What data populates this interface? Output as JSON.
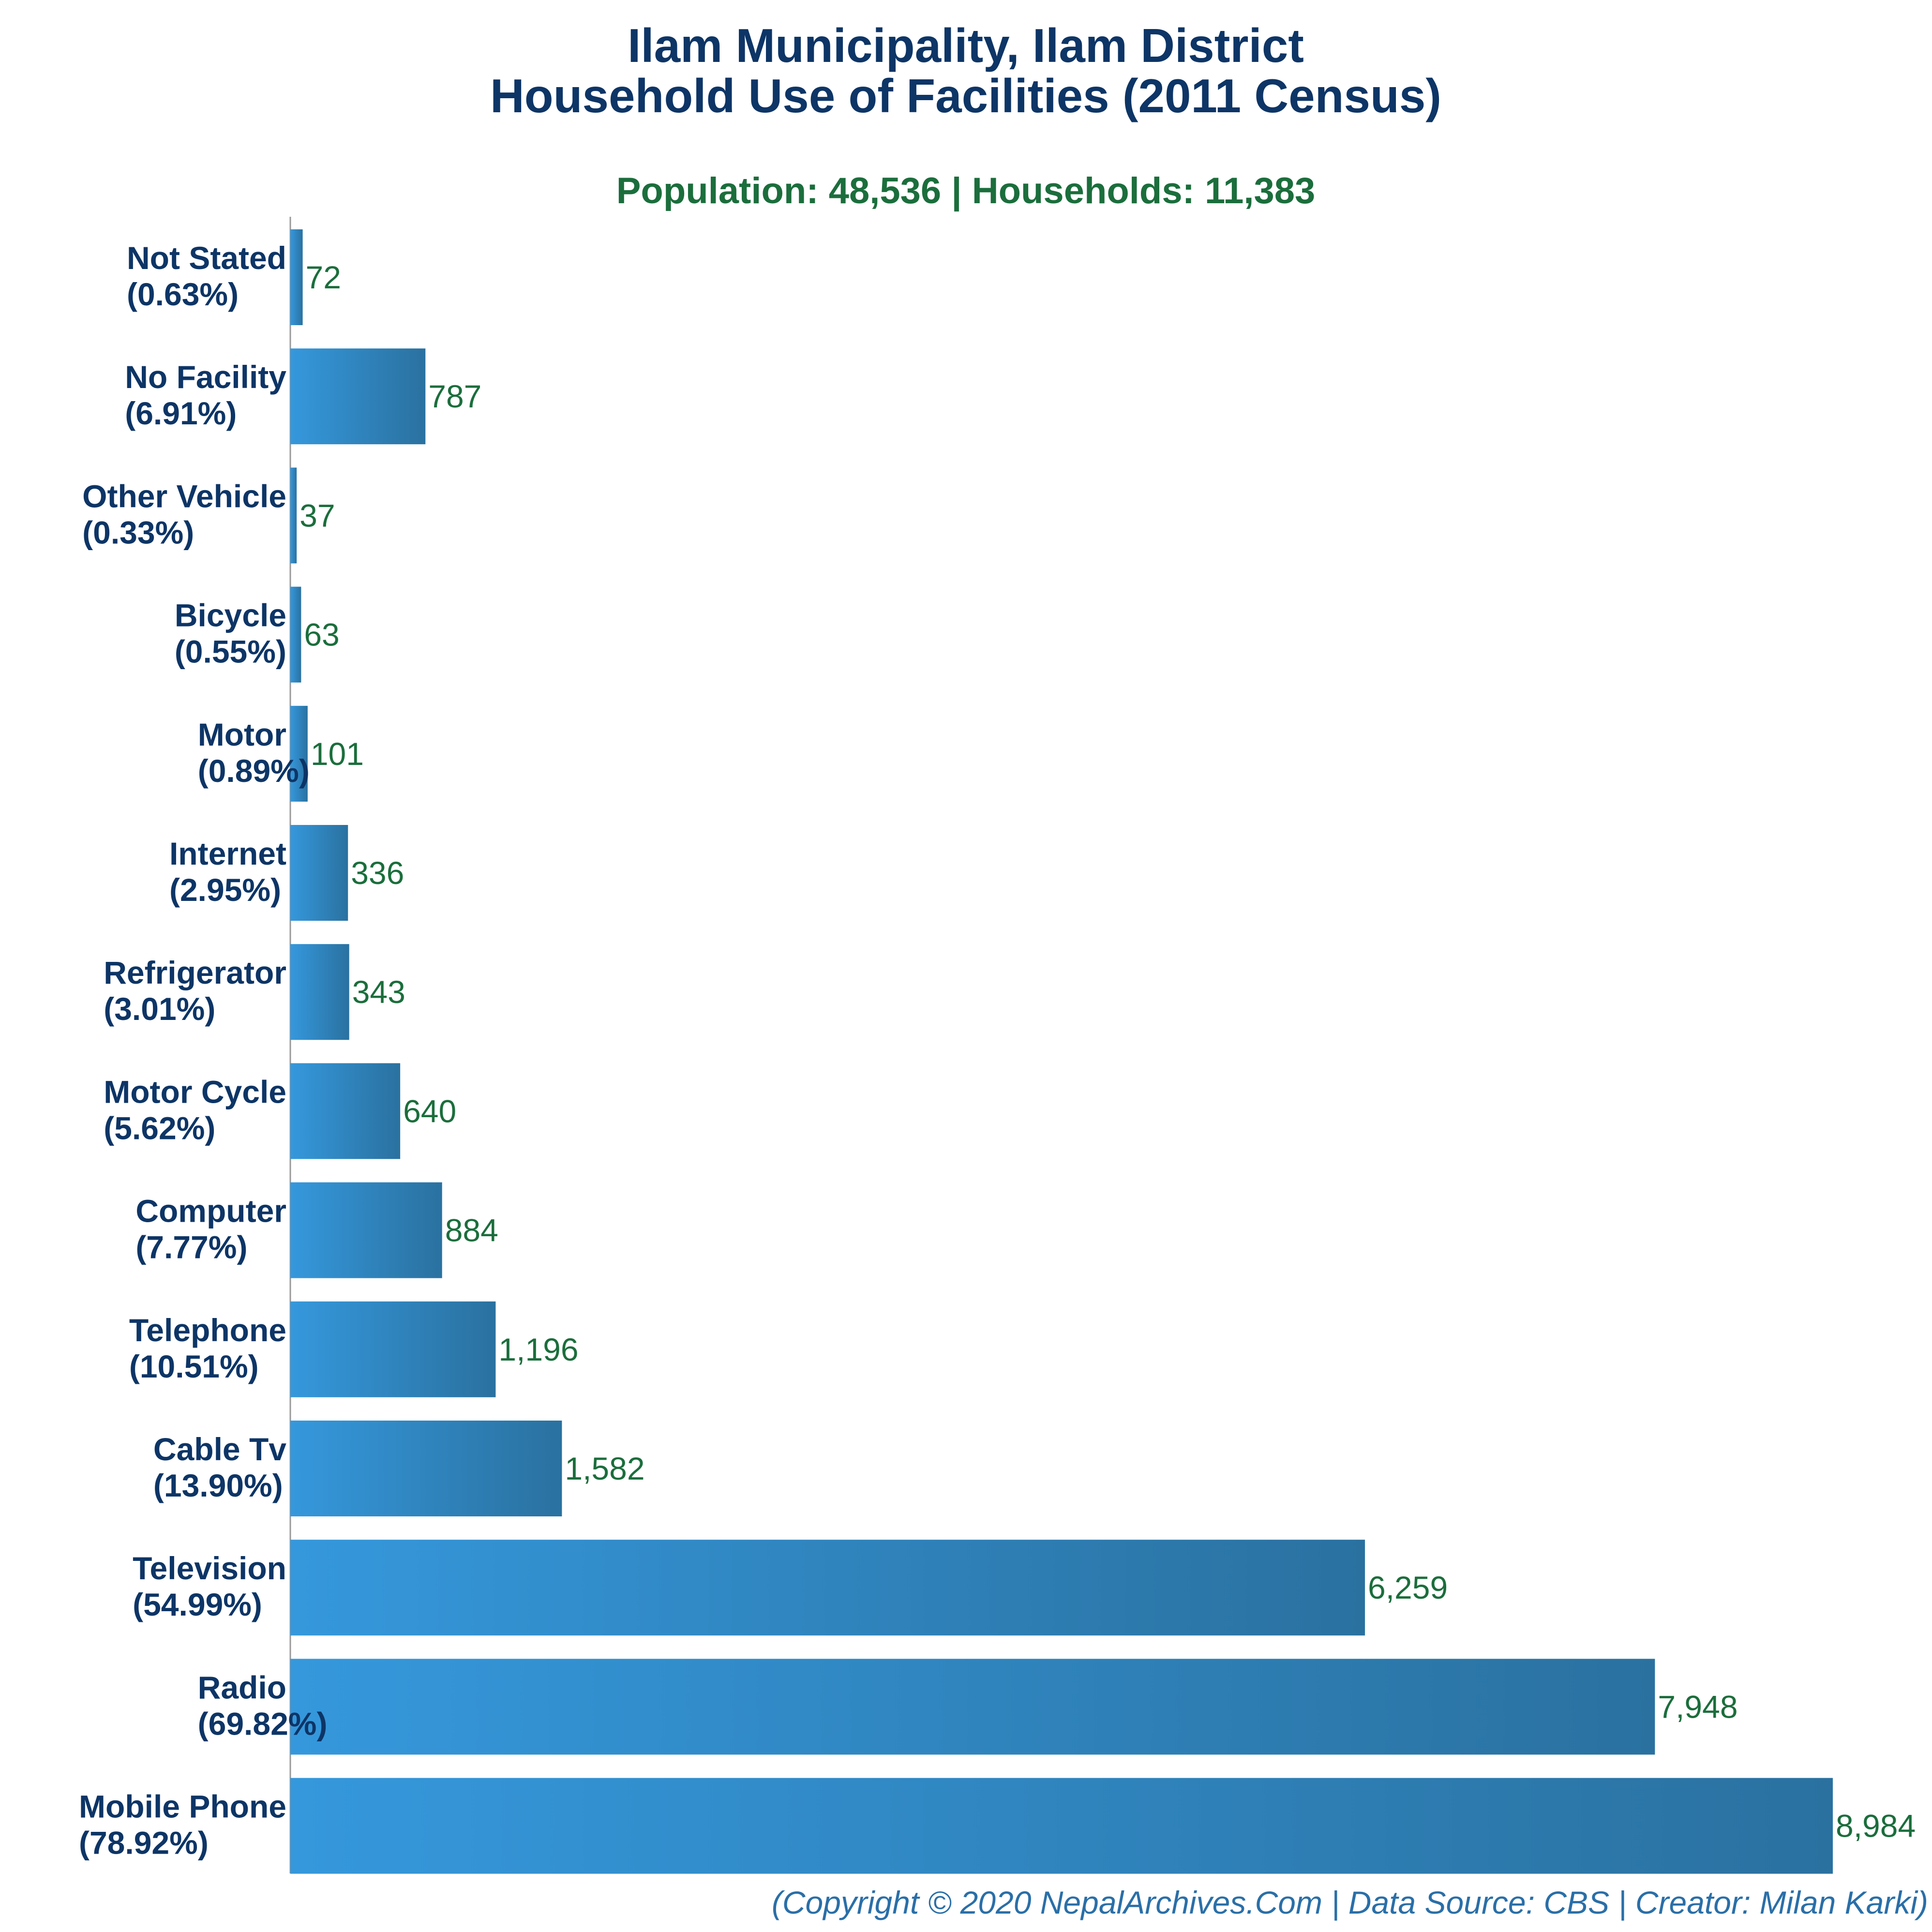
{
  "chart_data": {
    "type": "bar",
    "orientation": "horizontal",
    "title": [
      "Ilam Municipality, Ilam District",
      "Household Use of Facilities (2011 Census)"
    ],
    "subtitle": "Population: 48,536 | Households: 11,383",
    "categories": [
      "Not Stated",
      "No Facility",
      "Other Vehicle",
      "Bicycle",
      "Motor",
      "Internet",
      "Refrigerator",
      "Motor Cycle",
      "Computer",
      "Telephone",
      "Cable Tv",
      "Television",
      "Radio",
      "Mobile Phone"
    ],
    "percent_labels": [
      "(0.63%)",
      "(6.91%)",
      "(0.33%)",
      "(0.55%)",
      "(0.89%)",
      "(2.95%)",
      "(3.01%)",
      "(5.62%)",
      "(7.77%)",
      "(10.51%)",
      "(13.90%)",
      "(54.99%)",
      "(69.82%)",
      "(78.92%)"
    ],
    "values": [
      72,
      787,
      37,
      63,
      101,
      336,
      343,
      640,
      884,
      1196,
      1582,
      6259,
      7948,
      8984
    ],
    "value_labels": [
      "72",
      "787",
      "37",
      "63",
      "101",
      "336",
      "343",
      "640",
      "884",
      "1,196",
      "1,582",
      "6,259",
      "7,948",
      "8,984"
    ],
    "xlim": [
      0,
      8984
    ],
    "grid": false,
    "legend": "none",
    "footer": "(Copyright © 2020 NepalArchives.Com | Data Source: CBS | Creator: Milan Karki)",
    "colors": {
      "bar_start": "#3598dc",
      "bar_end": "#2a71a0",
      "title": "#0d3566",
      "subtitle": "#1b6e3c",
      "value_label": "#1b6e3c",
      "footer": "#2a6fa8",
      "axis": "#999999"
    }
  }
}
